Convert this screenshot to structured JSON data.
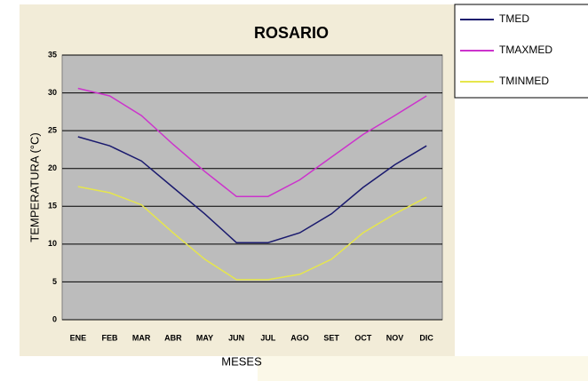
{
  "chart_data": {
    "type": "line",
    "title": "ROSARIO",
    "xlabel": "MESES",
    "ylabel": "TEMPERATURA (°C)",
    "categories": [
      "ENE",
      "FEB",
      "MAR",
      "ABR",
      "MAY",
      "JUN",
      "JUL",
      "AGO",
      "SET",
      "OCT",
      "NOV",
      "DIC"
    ],
    "series": [
      {
        "name": "TMED",
        "color": "#1a1a6e",
        "values": [
          24.2,
          23,
          21,
          17.5,
          14,
          10.2,
          10.2,
          11.5,
          14,
          17.5,
          20.5,
          23
        ]
      },
      {
        "name": "TMAXMED",
        "color": "#cc33cc",
        "values": [
          30.6,
          29.6,
          27,
          23.2,
          19.6,
          16.3,
          16.3,
          18.5,
          21.5,
          24.5,
          27,
          29.6
        ]
      },
      {
        "name": "TMINMED",
        "color": "#e6e64c",
        "values": [
          17.6,
          16.8,
          15.2,
          11.5,
          8,
          5.3,
          5.3,
          6,
          8,
          11.5,
          14,
          16.2
        ]
      }
    ],
    "ylim": [
      0,
      35
    ],
    "yticks": [
      0,
      5,
      10,
      15,
      20,
      25,
      30,
      35
    ],
    "grid": true,
    "legend": "right"
  }
}
